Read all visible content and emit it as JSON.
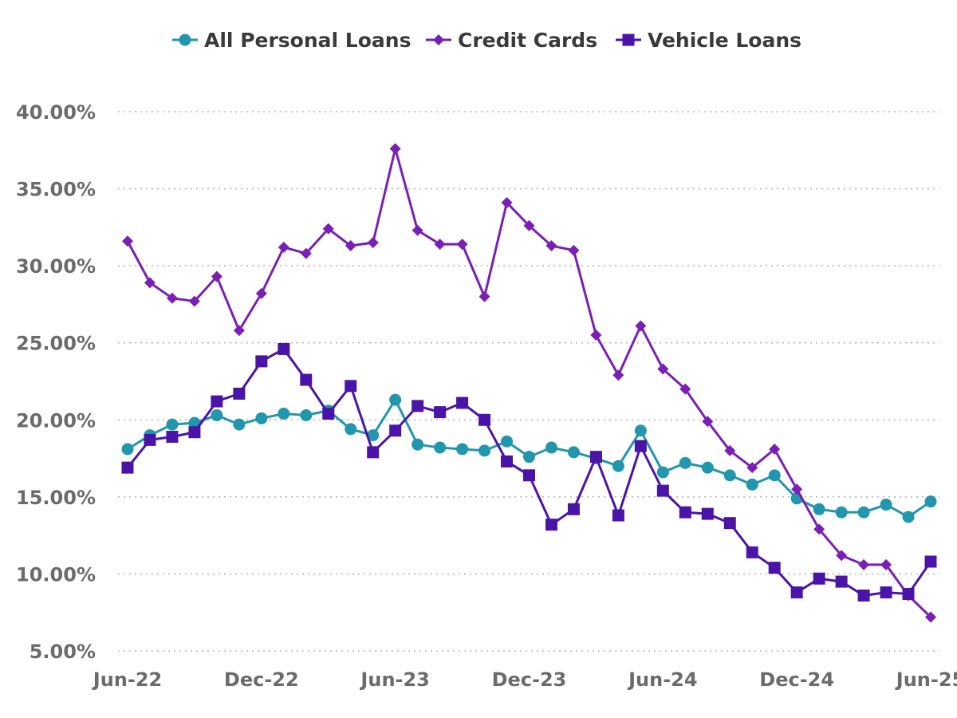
{
  "chart_data": {
    "type": "line",
    "title": "",
    "xlabel": "",
    "ylabel": "",
    "ylim": [
      5,
      40
    ],
    "yticks": [
      "5.00%",
      "10.00%",
      "15.00%",
      "20.00%",
      "25.00%",
      "30.00%",
      "35.00%",
      "40.00%"
    ],
    "ytick_values": [
      5,
      10,
      15,
      20,
      25,
      30,
      35,
      40
    ],
    "xticks": [
      {
        "label": "Jun-22",
        "index": 0
      },
      {
        "label": "Dec-22",
        "index": 6
      },
      {
        "label": "Jun-23",
        "index": 12
      },
      {
        "label": "Dec-23",
        "index": 18
      },
      {
        "label": "Jun-24",
        "index": 24
      },
      {
        "label": "Dec-24",
        "index": 30
      },
      {
        "label": "Jun-25",
        "index": 36
      }
    ],
    "x": [
      "Jun-22",
      "Jul-22",
      "Aug-22",
      "Sep-22",
      "Oct-22",
      "Nov-22",
      "Dec-22",
      "Jan-23",
      "Feb-23",
      "Mar-23",
      "Apr-23",
      "May-23",
      "Jun-23",
      "Jul-23",
      "Aug-23",
      "Sep-23",
      "Oct-23",
      "Nov-23",
      "Dec-23",
      "Jan-24",
      "Feb-24",
      "Mar-24",
      "Apr-24",
      "May-24",
      "Jun-24",
      "Jul-24",
      "Aug-24",
      "Sep-24",
      "Oct-24",
      "Nov-24",
      "Dec-24",
      "Jan-25",
      "Feb-25",
      "Mar-25",
      "Apr-25",
      "May-25",
      "Jun-25"
    ],
    "legend_position": "top",
    "grid": true,
    "series": [
      {
        "name": "All Personal Loans",
        "color": "#2196ac",
        "marker": "circle",
        "values": [
          18.1,
          19.0,
          19.7,
          19.8,
          20.3,
          19.7,
          20.1,
          20.4,
          20.3,
          20.6,
          19.4,
          19.0,
          21.3,
          18.4,
          18.2,
          18.1,
          18.0,
          18.6,
          17.6,
          18.2,
          17.9,
          17.5,
          17.0,
          19.3,
          16.6,
          17.2,
          16.9,
          16.4,
          15.8,
          16.4,
          14.9,
          14.2,
          14.0,
          14.0,
          14.5,
          13.7,
          14.7
        ]
      },
      {
        "name": "Credit Cards",
        "color": "#7a1fb5",
        "marker": "diamond",
        "values": [
          31.6,
          28.9,
          27.9,
          27.7,
          29.3,
          25.8,
          28.2,
          31.2,
          30.8,
          32.4,
          31.3,
          31.5,
          37.6,
          32.3,
          31.4,
          31.4,
          28.0,
          34.1,
          32.6,
          31.3,
          31.0,
          25.5,
          22.9,
          26.1,
          23.3,
          22.0,
          19.9,
          18.0,
          16.9,
          18.1,
          15.5,
          12.9,
          11.2,
          10.6,
          10.6,
          8.6,
          7.2
        ]
      },
      {
        "name": "Vehicle Loans",
        "color": "#4a14a8",
        "marker": "square",
        "values": [
          16.9,
          18.7,
          18.9,
          19.2,
          21.2,
          21.7,
          23.8,
          24.6,
          22.6,
          20.4,
          22.2,
          17.9,
          19.3,
          20.9,
          20.5,
          21.1,
          20.0,
          17.3,
          16.4,
          13.2,
          14.2,
          17.6,
          13.8,
          18.3,
          15.4,
          14.0,
          13.9,
          13.3,
          11.4,
          10.4,
          8.8,
          9.7,
          9.5,
          8.6,
          8.8,
          8.7,
          10.8
        ]
      }
    ]
  }
}
